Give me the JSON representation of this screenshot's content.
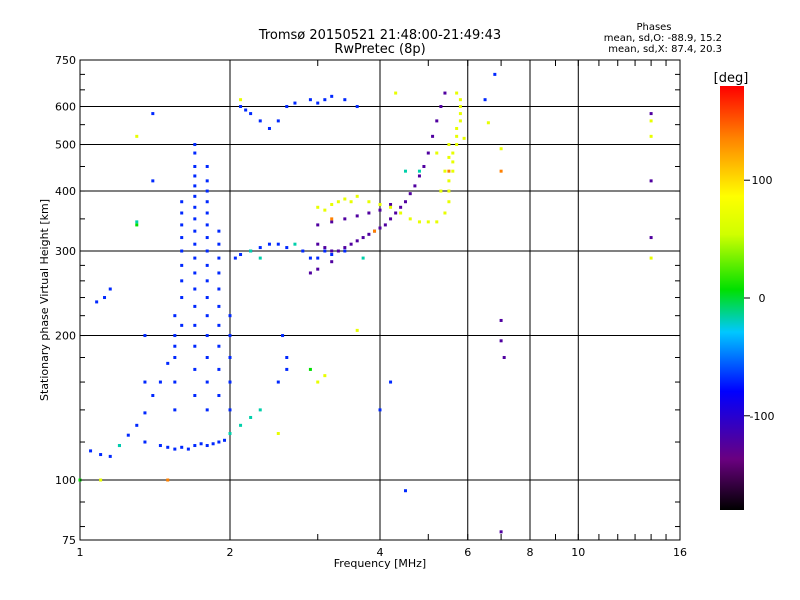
{
  "header": {
    "title_line1": "Tromsø 20150521 21:48:00-21:49:43",
    "title_line2": "RwPretec (8p)",
    "phases_label": "Phases",
    "stats_o": "mean, sd,O: -88.9, 15.2",
    "stats_x": "mean, sd,X:  87.4, 20.3"
  },
  "chart_data": {
    "type": "scatter",
    "title": "Tromsø 20150521 21:48:00-21:49:43",
    "subtitle": "RwPretec (8p)",
    "xlabel": "Frequency [MHz]",
    "ylabel": "Stationary phase Virtual Height [km]",
    "x_scale": "log",
    "y_scale": "log",
    "xlim": [
      1,
      16
    ],
    "ylim": [
      75,
      750
    ],
    "x_ticks": [
      1,
      2,
      4,
      6,
      8,
      10,
      16
    ],
    "y_ticks": [
      75,
      100,
      200,
      300,
      400,
      500,
      600,
      750
    ],
    "colorbar": {
      "label": "[deg]",
      "range": [
        -180,
        180
      ],
      "ticks": [
        100,
        0,
        -100
      ],
      "colormap": "rainbow"
    },
    "series": [
      {
        "color_phase": -100,
        "points": [
          [
            1.05,
            115
          ],
          [
            1.1,
            113
          ],
          [
            1.15,
            112
          ],
          [
            1.2,
            118
          ],
          [
            1.25,
            124
          ],
          [
            1.3,
            130
          ],
          [
            1.35,
            138
          ],
          [
            1.4,
            150
          ],
          [
            1.45,
            160
          ],
          [
            1.5,
            175
          ],
          [
            1.55,
            190
          ],
          [
            1.6,
            210
          ],
          [
            1.08,
            235
          ],
          [
            1.12,
            240
          ],
          [
            1.15,
            250
          ],
          [
            1.45,
            118
          ],
          [
            1.5,
            117
          ],
          [
            1.55,
            116
          ],
          [
            1.6,
            117
          ],
          [
            1.65,
            116
          ],
          [
            1.7,
            118
          ],
          [
            1.75,
            119
          ],
          [
            1.8,
            118
          ],
          [
            1.85,
            119
          ],
          [
            1.9,
            120
          ],
          [
            1.95,
            121
          ],
          [
            1.55,
            140
          ],
          [
            1.55,
            160
          ],
          [
            1.55,
            180
          ],
          [
            1.55,
            200
          ],
          [
            1.55,
            220
          ],
          [
            1.6,
            240
          ],
          [
            1.6,
            260
          ],
          [
            1.6,
            280
          ],
          [
            1.6,
            300
          ],
          [
            1.6,
            320
          ],
          [
            1.6,
            340
          ],
          [
            1.6,
            360
          ],
          [
            1.6,
            380
          ],
          [
            1.7,
            150
          ],
          [
            1.7,
            170
          ],
          [
            1.7,
            190
          ],
          [
            1.7,
            210
          ],
          [
            1.7,
            230
          ],
          [
            1.7,
            250
          ],
          [
            1.7,
            270
          ],
          [
            1.7,
            290
          ],
          [
            1.7,
            310
          ],
          [
            1.7,
            330
          ],
          [
            1.7,
            350
          ],
          [
            1.7,
            370
          ],
          [
            1.7,
            390
          ],
          [
            1.7,
            410
          ],
          [
            1.7,
            430
          ],
          [
            1.7,
            450
          ],
          [
            1.7,
            480
          ],
          [
            1.7,
            500
          ],
          [
            1.8,
            140
          ],
          [
            1.8,
            160
          ],
          [
            1.8,
            180
          ],
          [
            1.8,
            200
          ],
          [
            1.8,
            220
          ],
          [
            1.8,
            240
          ],
          [
            1.8,
            260
          ],
          [
            1.8,
            280
          ],
          [
            1.8,
            300
          ],
          [
            1.8,
            320
          ],
          [
            1.8,
            340
          ],
          [
            1.8,
            360
          ],
          [
            1.8,
            380
          ],
          [
            1.8,
            400
          ],
          [
            1.8,
            420
          ],
          [
            1.8,
            450
          ],
          [
            1.9,
            150
          ],
          [
            1.9,
            170
          ],
          [
            1.9,
            190
          ],
          [
            1.9,
            210
          ],
          [
            1.9,
            230
          ],
          [
            1.9,
            250
          ],
          [
            1.9,
            270
          ],
          [
            1.9,
            290
          ],
          [
            1.9,
            310
          ],
          [
            1.9,
            330
          ],
          [
            2.0,
            140
          ],
          [
            2.0,
            160
          ],
          [
            2.0,
            180
          ],
          [
            2.0,
            200
          ],
          [
            2.0,
            220
          ],
          [
            2.05,
            290
          ],
          [
            2.1,
            295
          ],
          [
            2.2,
            300
          ],
          [
            2.3,
            305
          ],
          [
            2.4,
            310
          ],
          [
            2.5,
            310
          ],
          [
            2.6,
            305
          ],
          [
            2.1,
            600
          ],
          [
            2.15,
            590
          ],
          [
            2.2,
            580
          ],
          [
            2.3,
            560
          ],
          [
            2.4,
            540
          ],
          [
            2.5,
            560
          ],
          [
            2.6,
            600
          ],
          [
            2.7,
            610
          ],
          [
            2.5,
            160
          ],
          [
            2.6,
            170
          ],
          [
            2.6,
            180
          ],
          [
            2.55,
            200
          ],
          [
            2.8,
            300
          ],
          [
            2.9,
            290
          ],
          [
            3.0,
            290
          ],
          [
            3.1,
            300
          ],
          [
            3.2,
            295
          ],
          [
            3.4,
            300
          ],
          [
            2.9,
            620
          ],
          [
            3.0,
            610
          ],
          [
            3.1,
            620
          ],
          [
            3.2,
            630
          ],
          [
            3.4,
            620
          ],
          [
            3.6,
            600
          ],
          [
            1.35,
            120
          ],
          [
            1.35,
            160
          ],
          [
            1.35,
            200
          ],
          [
            1.4,
            420
          ],
          [
            1.4,
            580
          ],
          [
            4.0,
            140
          ],
          [
            4.2,
            160
          ],
          [
            4.5,
            95
          ],
          [
            6.5,
            620
          ],
          [
            6.8,
            700
          ]
        ]
      },
      {
        "color_phase": -140,
        "points": [
          [
            3.0,
            310
          ],
          [
            3.1,
            305
          ],
          [
            3.2,
            300
          ],
          [
            3.3,
            300
          ],
          [
            3.4,
            305
          ],
          [
            3.5,
            310
          ],
          [
            3.6,
            315
          ],
          [
            3.7,
            320
          ],
          [
            3.8,
            325
          ],
          [
            3.9,
            330
          ],
          [
            4.0,
            335
          ],
          [
            4.1,
            340
          ],
          [
            4.2,
            350
          ],
          [
            4.3,
            360
          ],
          [
            4.4,
            370
          ],
          [
            4.5,
            380
          ],
          [
            4.6,
            395
          ],
          [
            4.7,
            410
          ],
          [
            4.8,
            430
          ],
          [
            4.9,
            450
          ],
          [
            5.0,
            480
          ],
          [
            5.1,
            520
          ],
          [
            5.2,
            560
          ],
          [
            5.3,
            600
          ],
          [
            5.4,
            640
          ],
          [
            3.0,
            340
          ],
          [
            3.2,
            345
          ],
          [
            3.4,
            350
          ],
          [
            3.6,
            355
          ],
          [
            3.8,
            360
          ],
          [
            4.0,
            365
          ],
          [
            4.2,
            375
          ],
          [
            2.9,
            270
          ],
          [
            3.0,
            275
          ],
          [
            3.2,
            285
          ],
          [
            7.0,
            215
          ],
          [
            7.1,
            180
          ],
          [
            7.0,
            195
          ],
          [
            14.0,
            420
          ],
          [
            14.0,
            320
          ],
          [
            14.0,
            580
          ],
          [
            7.0,
            78
          ]
        ]
      },
      {
        "color_phase": -40,
        "points": [
          [
            1.3,
            345
          ],
          [
            2.0,
            125
          ],
          [
            2.1,
            130
          ],
          [
            2.2,
            135
          ],
          [
            2.3,
            140
          ],
          [
            2.2,
            300
          ],
          [
            2.3,
            290
          ],
          [
            2.7,
            310
          ],
          [
            1.2,
            118
          ],
          [
            4.5,
            440
          ],
          [
            4.8,
            440
          ],
          [
            3.7,
            290
          ]
        ]
      },
      {
        "color_phase": 70,
        "points": [
          [
            3.0,
            370
          ],
          [
            3.1,
            365
          ],
          [
            3.2,
            375
          ],
          [
            3.3,
            380
          ],
          [
            3.4,
            385
          ],
          [
            3.5,
            380
          ],
          [
            3.6,
            390
          ],
          [
            3.8,
            380
          ],
          [
            4.0,
            375
          ],
          [
            4.2,
            370
          ],
          [
            4.4,
            360
          ],
          [
            4.6,
            350
          ],
          [
            4.8,
            345
          ],
          [
            5.0,
            345
          ],
          [
            5.2,
            345
          ],
          [
            5.4,
            360
          ],
          [
            5.5,
            380
          ],
          [
            5.5,
            400
          ],
          [
            5.5,
            420
          ],
          [
            5.6,
            440
          ],
          [
            5.6,
            460
          ],
          [
            5.6,
            480
          ],
          [
            5.7,
            500
          ],
          [
            5.7,
            520
          ],
          [
            5.7,
            540
          ],
          [
            5.8,
            560
          ],
          [
            5.8,
            580
          ],
          [
            5.8,
            600
          ],
          [
            5.8,
            620
          ],
          [
            5.7,
            640
          ],
          [
            5.3,
            400
          ],
          [
            5.4,
            440
          ],
          [
            5.5,
            470
          ],
          [
            5.5,
            500
          ],
          [
            5.2,
            480
          ],
          [
            3.1,
            165
          ],
          [
            3.0,
            160
          ],
          [
            3.6,
            205
          ],
          [
            2.5,
            125
          ],
          [
            1.3,
            520
          ],
          [
            2.1,
            620
          ],
          [
            14.0,
            560
          ],
          [
            14.0,
            290
          ],
          [
            14.0,
            520
          ],
          [
            4.3,
            640
          ],
          [
            5.9,
            515
          ],
          [
            7.0,
            490
          ],
          [
            6.6,
            555
          ],
          [
            1.1,
            100
          ]
        ]
      },
      {
        "color_phase": 140,
        "points": [
          [
            3.9,
            330
          ],
          [
            3.2,
            350
          ],
          [
            5.5,
            440
          ],
          [
            1.5,
            100
          ],
          [
            7.0,
            440
          ]
        ]
      },
      {
        "color_phase": 0,
        "points": [
          [
            1.3,
            340
          ],
          [
            1.0,
            100
          ],
          [
            2.9,
            170
          ]
        ]
      }
    ]
  }
}
